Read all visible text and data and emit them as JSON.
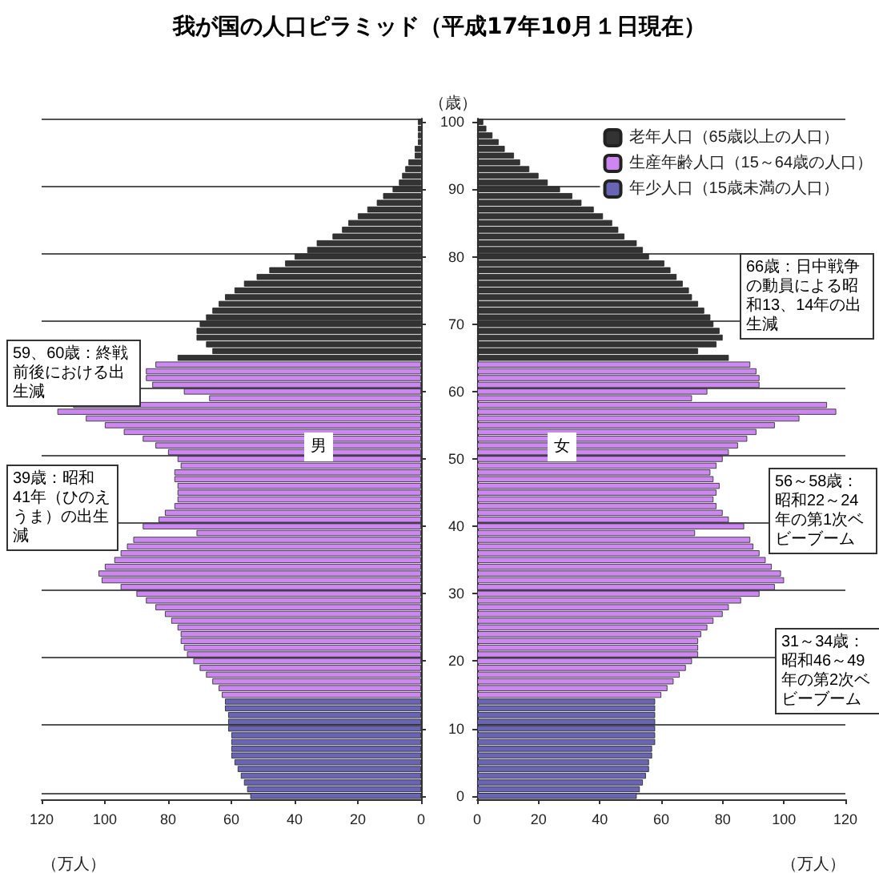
{
  "chart_data": [
    {
      "type": "bar",
      "orientation": "horizontal",
      "title": "我が国の人口ピラミッド（平成17年10月１日現在）",
      "xlabel": "（万人）",
      "xlim": [
        120,
        0
      ],
      "xticks": [
        120,
        100,
        80,
        60,
        40,
        20,
        0
      ],
      "tick_labels": "x",
      "grid": "y",
      "legend": false,
      "categories": [
        "100",
        null,
        null,
        null,
        null,
        null,
        null,
        null,
        null,
        null,
        "90",
        null,
        null,
        null,
        null,
        null,
        null,
        null,
        null,
        null,
        "80",
        null,
        null,
        null,
        null,
        null,
        null,
        null,
        null,
        null,
        "70",
        null,
        null,
        null,
        null,
        null,
        null,
        null,
        null,
        null,
        "60",
        null,
        null,
        null,
        null,
        null,
        null,
        null,
        null,
        null,
        "50",
        null,
        null,
        null,
        null,
        null,
        null,
        null,
        null,
        null,
        "40",
        null,
        null,
        null,
        null,
        null,
        null,
        null,
        null,
        null,
        "30",
        null,
        null,
        null,
        null,
        null,
        null,
        null,
        null,
        null,
        "20",
        null,
        null,
        null,
        null,
        null,
        null,
        null,
        null,
        null,
        "10",
        null,
        null,
        null,
        null,
        null,
        null,
        null,
        null,
        null,
        "0"
      ],
      "annotations": [
        "男",
        "59、60歳：終戦前後における出生減",
        "39歳：昭和41年（ひのえうま）の出生減"
      ],
      "series": [
        {
          "color": "#333333",
          "values": [
            1,
            1,
            1,
            1,
            2,
            2,
            4,
            5,
            6,
            7,
            9,
            12,
            14,
            17,
            20,
            23,
            25,
            28,
            33,
            36,
            40,
            43,
            48,
            52,
            56,
            59,
            62,
            64,
            66,
            68,
            70,
            71,
            71,
            68,
            66,
            77,
            null,
            null,
            null,
            null,
            null,
            null,
            null,
            null,
            null,
            null,
            null,
            null,
            null,
            null,
            null,
            null,
            null,
            null,
            null,
            null,
            null,
            null,
            null,
            null,
            null,
            null,
            null,
            null,
            null,
            null,
            null,
            null,
            null,
            null,
            null,
            null,
            null,
            null,
            null,
            null,
            null,
            null,
            null,
            null,
            null,
            null,
            null,
            null,
            null,
            null,
            null,
            null,
            null,
            null,
            null,
            null,
            null,
            null,
            null,
            null,
            null,
            null,
            null,
            null,
            null
          ]
        },
        {
          "color": "#cc88f0",
          "values": [
            null,
            null,
            null,
            null,
            null,
            null,
            null,
            null,
            null,
            null,
            null,
            null,
            null,
            null,
            null,
            null,
            null,
            null,
            null,
            null,
            null,
            null,
            null,
            null,
            null,
            null,
            null,
            null,
            null,
            null,
            null,
            null,
            null,
            null,
            null,
            null,
            84,
            87,
            87,
            85,
            75,
            67,
            110,
            115,
            106,
            100,
            94,
            88,
            84,
            80,
            77,
            76,
            78,
            78,
            77,
            77,
            77,
            78,
            81,
            83,
            88,
            71,
            91,
            93,
            95,
            97,
            100,
            102,
            101,
            95,
            90,
            87,
            84,
            81,
            79,
            77,
            76,
            76,
            75,
            74,
            72,
            70,
            68,
            66,
            64,
            63,
            null,
            null,
            null,
            null,
            null,
            null,
            null,
            null,
            null,
            null,
            null,
            null,
            null,
            null,
            null
          ]
        },
        {
          "color": "#6a64b4",
          "values": [
            null,
            null,
            null,
            null,
            null,
            null,
            null,
            null,
            null,
            null,
            null,
            null,
            null,
            null,
            null,
            null,
            null,
            null,
            null,
            null,
            null,
            null,
            null,
            null,
            null,
            null,
            null,
            null,
            null,
            null,
            null,
            null,
            null,
            null,
            null,
            null,
            null,
            null,
            null,
            null,
            null,
            null,
            null,
            null,
            null,
            null,
            null,
            null,
            null,
            null,
            null,
            null,
            null,
            null,
            null,
            null,
            null,
            null,
            null,
            null,
            null,
            null,
            null,
            null,
            null,
            null,
            null,
            null,
            null,
            null,
            null,
            null,
            null,
            null,
            null,
            null,
            null,
            null,
            null,
            null,
            null,
            null,
            null,
            null,
            null,
            null,
            62,
            62,
            61,
            61,
            61,
            60,
            60,
            60,
            60,
            59,
            58,
            57,
            56,
            55,
            54
          ]
        }
      ]
    },
    {
      "type": "bar",
      "orientation": "horizontal",
      "xlabel": "（万人）",
      "ylabel": "（歳）",
      "xlim": [
        0,
        120
      ],
      "xticks": [
        0,
        20,
        40,
        60,
        80,
        100,
        120
      ],
      "grid": "y",
      "legend": "top right",
      "categories": [
        "100",
        null,
        null,
        null,
        null,
        null,
        null,
        null,
        null,
        null,
        "90",
        null,
        null,
        null,
        null,
        null,
        null,
        null,
        null,
        null,
        "80",
        null,
        null,
        null,
        null,
        null,
        null,
        null,
        null,
        null,
        "70",
        null,
        null,
        null,
        null,
        null,
        null,
        null,
        null,
        null,
        "60",
        null,
        null,
        null,
        null,
        null,
        null,
        null,
        null,
        null,
        "50",
        null,
        null,
        null,
        null,
        null,
        null,
        null,
        null,
        null,
        "40",
        null,
        null,
        null,
        null,
        null,
        null,
        null,
        null,
        null,
        "30",
        null,
        null,
        null,
        null,
        null,
        null,
        null,
        null,
        null,
        "20",
        null,
        null,
        null,
        null,
        null,
        null,
        null,
        null,
        null,
        "10",
        null,
        null,
        null,
        null,
        null,
        null,
        null,
        null,
        null,
        "0"
      ],
      "annotations": [
        "女",
        "66歳：日中戦争の動員による昭和13、14年の出生減",
        "56～58歳：昭和22～24年の第1次ベビーブーム",
        "31～34歳：昭和46～49年の第2次ベビーブーム"
      ],
      "series": [
        {
          "name": "老年人口（65歳以上の人口）",
          "color": "#333333",
          "values": [
            2,
            3,
            5,
            7,
            9,
            12,
            14,
            17,
            20,
            23,
            27,
            31,
            34,
            38,
            41,
            44,
            46,
            48,
            52,
            54,
            56,
            61,
            63,
            65,
            67,
            69,
            70,
            72,
            74,
            76,
            77,
            79,
            80,
            78,
            72,
            82,
            null,
            null,
            null,
            null,
            null,
            null,
            null,
            null,
            null,
            null,
            null,
            null,
            null,
            null,
            null,
            null,
            null,
            null,
            null,
            null,
            null,
            null,
            null,
            null,
            null,
            null,
            null,
            null,
            null,
            null,
            null,
            null,
            null,
            null,
            null,
            null,
            null,
            null,
            null,
            null,
            null,
            null,
            null,
            null,
            null,
            null,
            null,
            null,
            null,
            null,
            null,
            null,
            null,
            null,
            null,
            null,
            null,
            null,
            null,
            null,
            null,
            null,
            null,
            null,
            null
          ]
        },
        {
          "name": "生産年齢人口（15～64歳の人口）",
          "color": "#cc88f0",
          "values": [
            null,
            null,
            null,
            null,
            null,
            null,
            null,
            null,
            null,
            null,
            null,
            null,
            null,
            null,
            null,
            null,
            null,
            null,
            null,
            null,
            null,
            null,
            null,
            null,
            null,
            null,
            null,
            null,
            null,
            null,
            null,
            null,
            null,
            null,
            null,
            null,
            89,
            91,
            92,
            92,
            75,
            70,
            114,
            117,
            105,
            97,
            91,
            88,
            85,
            82,
            80,
            78,
            76,
            77,
            79,
            78,
            77,
            78,
            80,
            82,
            87,
            71,
            89,
            90,
            92,
            94,
            96,
            99,
            100,
            97,
            92,
            86,
            82,
            80,
            77,
            75,
            73,
            72,
            72,
            72,
            70,
            68,
            66,
            64,
            62,
            60,
            null,
            null,
            null,
            null,
            null,
            null,
            null,
            null,
            null,
            null,
            null,
            null,
            null,
            null,
            null
          ]
        },
        {
          "name": "年少人口（15歳未満の人口）",
          "color": "#6a64b4",
          "values": [
            null,
            null,
            null,
            null,
            null,
            null,
            null,
            null,
            null,
            null,
            null,
            null,
            null,
            null,
            null,
            null,
            null,
            null,
            null,
            null,
            null,
            null,
            null,
            null,
            null,
            null,
            null,
            null,
            null,
            null,
            null,
            null,
            null,
            null,
            null,
            null,
            null,
            null,
            null,
            null,
            null,
            null,
            null,
            null,
            null,
            null,
            null,
            null,
            null,
            null,
            null,
            null,
            null,
            null,
            null,
            null,
            null,
            null,
            null,
            null,
            null,
            null,
            null,
            null,
            null,
            null,
            null,
            null,
            null,
            null,
            null,
            null,
            null,
            null,
            null,
            null,
            null,
            null,
            null,
            null,
            null,
            null,
            null,
            null,
            null,
            null,
            58,
            58,
            58,
            58,
            58,
            58,
            58,
            57,
            57,
            56,
            56,
            55,
            54,
            53,
            52
          ]
        }
      ]
    }
  ]
}
